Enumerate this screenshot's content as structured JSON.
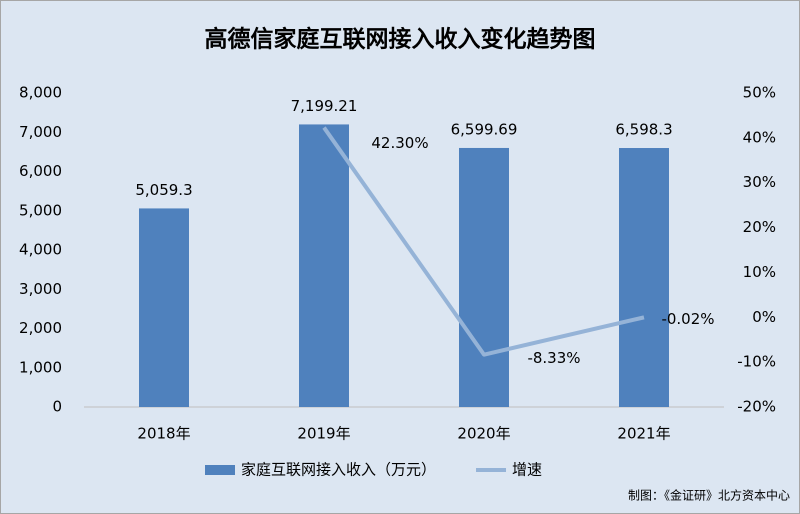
{
  "chart_data": {
    "type": "bar",
    "title": "高德信家庭互联网接入收入变化趋势图",
    "categories": [
      "2018年",
      "2019年",
      "2020年",
      "2021年"
    ],
    "series": [
      {
        "name": "家庭互联网接入收入（万元）",
        "type": "bar",
        "color": "#4f81bd",
        "values": [
          5059.3,
          7199.21,
          6599.69,
          6598.3
        ],
        "value_labels": [
          "5,059.3",
          "7,199.21",
          "6,599.69",
          "6,598.3"
        ]
      },
      {
        "name": "增速",
        "type": "line",
        "axis": "y2",
        "color": "#95b3d7",
        "values": [
          null,
          42.3,
          -8.33,
          -0.02
        ],
        "value_labels": [
          null,
          "42.30%",
          "-8.33%",
          "-0.02%"
        ]
      }
    ],
    "ylim": [
      0,
      8000
    ],
    "yticks": [
      0,
      {
        "value": 1000,
        "label": "1,000"
      },
      {
        "value": 2000,
        "label": "2,000"
      },
      {
        "value": 3000,
        "label": "3,000"
      },
      {
        "value": 4000,
        "label": "4,000"
      },
      {
        "value": 5000,
        "label": "5,000"
      },
      {
        "value": 6000,
        "label": "6,000"
      },
      {
        "value": 7000,
        "label": "7,000"
      },
      {
        "value": 8000,
        "label": "8,000"
      }
    ],
    "y2lim": [
      -20,
      50
    ],
    "y2ticks": [
      {
        "value": -20,
        "label": "-20%"
      },
      {
        "value": -10,
        "label": "-10%"
      },
      {
        "value": 0,
        "label": "0%"
      },
      {
        "value": 10,
        "label": "10%"
      },
      {
        "value": 20,
        "label": "20%"
      },
      {
        "value": 30,
        "label": "30%"
      },
      {
        "value": 40,
        "label": "40%"
      },
      {
        "value": 50,
        "label": "50%"
      }
    ],
    "legend": "bottom",
    "source": "制图：《金证研》北方资本中心"
  }
}
